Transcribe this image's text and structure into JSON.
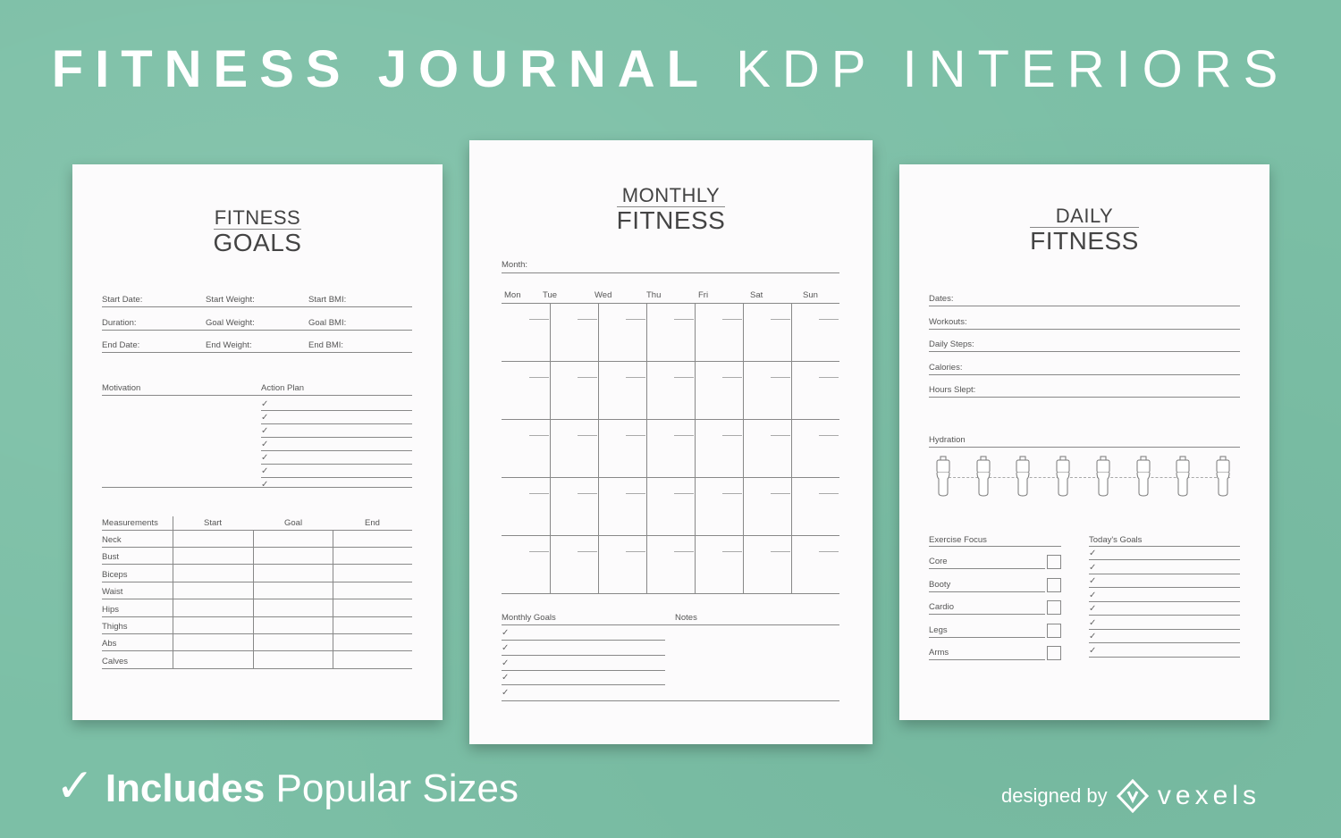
{
  "banner": {
    "bold": "FITNESS JOURNAL",
    "light": "KDP INTERIORS"
  },
  "footer": {
    "check": "✓",
    "includes": "Includes",
    "rest": "Popular Sizes",
    "designed_by": "designed by",
    "brand": "vexels"
  },
  "goals_page": {
    "title_small": "FITNESS",
    "title_large": "GOALS",
    "fields": [
      [
        "Start Date:",
        "Start Weight:",
        "Start BMI:"
      ],
      [
        "Duration:",
        "Goal Weight:",
        "Goal BMI:"
      ],
      [
        "End Date:",
        "End Weight:",
        "End BMI:"
      ]
    ],
    "motivation": "Motivation",
    "action_plan": "Action Plan",
    "measurements_headers": [
      "Measurements",
      "Start",
      "Goal",
      "End"
    ],
    "measurements": [
      "Neck",
      "Bust",
      "Biceps",
      "Waist",
      "Hips",
      "Thighs",
      "Abs",
      "Calves"
    ]
  },
  "monthly_page": {
    "title_small": "MONTHLY",
    "title_large": "FITNESS",
    "month": "Month:",
    "days": [
      "Mon",
      "Tue",
      "Wed",
      "Thu",
      "Fri",
      "Sat",
      "Sun"
    ],
    "monthly_goals": "Monthly Goals",
    "notes": "Notes"
  },
  "daily_page": {
    "title_small": "DAILY",
    "title_large": "FITNESS",
    "fields": [
      "Dates:",
      "Workouts:",
      "Daily Steps:",
      "Calories:",
      "Hours Slept:"
    ],
    "hydration": "Hydration",
    "exercise_focus": "Exercise Focus",
    "todays_goals": "Today's Goals",
    "exercises": [
      "Core",
      "Booty",
      "Cardio",
      "Legs",
      "Arms"
    ]
  }
}
